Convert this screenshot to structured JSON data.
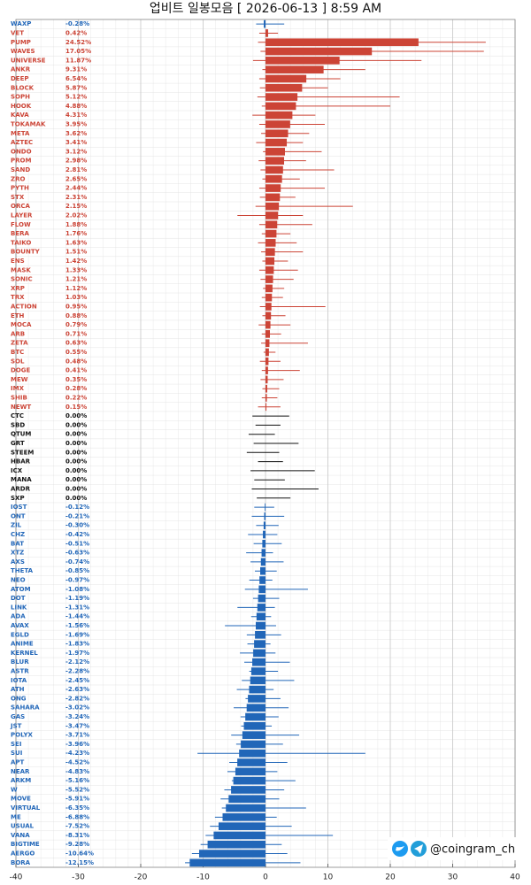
{
  "chart_data": {
    "type": "bar",
    "orientation": "horizontal",
    "title": "업비트 일봉모음 [ 2026-06-13 ]  8:59 AM",
    "watermark": "@coingram_ch",
    "xlim": [
      -40,
      40
    ],
    "xticks": [
      -40,
      -30,
      -20,
      -10,
      0,
      10,
      20,
      30,
      40
    ],
    "grid": true,
    "colors": {
      "up": "#cc4436",
      "flat": "#111111",
      "down": "#2166b8"
    },
    "categories": [
      "WAXP",
      "VET",
      "PUMP",
      "WAVES",
      "UNIVERSE",
      "ANKR",
      "DEEP",
      "BLOCK",
      "SOPH",
      "HOOK",
      "KAVA",
      "TOKAMAK",
      "META",
      "AZTEC",
      "ONDO",
      "PROM",
      "SAND",
      "ZRO",
      "PYTH",
      "STX",
      "ORCA",
      "LAYER",
      "FLOW",
      "BERA",
      "TAIKO",
      "BOUNTY",
      "ENS",
      "MASK",
      "SONIC",
      "XRP",
      "TRX",
      "ACTION",
      "ETH",
      "MOCA",
      "ARB",
      "ZETA",
      "BTC",
      "SOL",
      "DOGE",
      "MEW",
      "IMX",
      "SHIB",
      "NEWT",
      "CTC",
      "SBD",
      "QTUM",
      "GRT",
      "STEEM",
      "HBAR",
      "ICX",
      "MANA",
      "ARDR",
      "SXP",
      "IOST",
      "ONT",
      "ZIL",
      "CHZ",
      "BAT",
      "XTZ",
      "AXS",
      "THETA",
      "NEO",
      "ATOM",
      "DOT",
      "LINK",
      "ADA",
      "AVAX",
      "EGLD",
      "ANIME",
      "KERNEL",
      "BLUR",
      "ASTR",
      "IOTA",
      "ATH",
      "ONG",
      "SAHARA",
      "GAS",
      "JST",
      "POLYX",
      "SEI",
      "SUI",
      "APT",
      "NEAR",
      "ARKM",
      "W",
      "MOVE",
      "VIRTUAL",
      "ME",
      "USUAL",
      "VANA",
      "BIGTIME",
      "AERGO",
      "BORA"
    ],
    "values": [
      -0.28,
      0.42,
      24.52,
      17.05,
      11.87,
      9.31,
      6.54,
      5.87,
      5.12,
      4.88,
      4.31,
      3.95,
      3.62,
      3.41,
      3.12,
      2.98,
      2.81,
      2.65,
      2.44,
      2.31,
      2.15,
      2.02,
      1.88,
      1.76,
      1.63,
      1.51,
      1.42,
      1.33,
      1.21,
      1.12,
      1.03,
      0.95,
      0.88,
      0.79,
      0.71,
      0.63,
      0.55,
      0.48,
      0.41,
      0.35,
      0.28,
      0.22,
      0.15,
      0,
      0,
      0,
      0,
      0,
      0,
      0,
      0,
      0,
      0,
      -0.12,
      -0.21,
      -0.3,
      -0.42,
      -0.51,
      -0.63,
      -0.74,
      -0.85,
      -0.97,
      -1.08,
      -1.19,
      -1.31,
      -1.44,
      -1.56,
      -1.69,
      -1.83,
      -1.97,
      -2.12,
      -2.28,
      -2.45,
      -2.63,
      -2.82,
      -3.02,
      -3.24,
      -3.47,
      -3.71,
      -3.96,
      -4.23,
      -4.52,
      -4.83,
      -5.16,
      -5.52,
      -5.91,
      -6.35,
      -6.88,
      -7.52,
      -8.31,
      -9.28,
      -10.64,
      -12.15
    ],
    "value_labels": [
      "-0.28%",
      "0.42%",
      "24.52%",
      "17.05%",
      "11.87%",
      "9.31%",
      "6.54%",
      "5.87%",
      "5.12%",
      "4.88%",
      "4.31%",
      "3.95%",
      "3.62%",
      "3.41%",
      "3.12%",
      "2.98%",
      "2.81%",
      "2.65%",
      "2.44%",
      "2.31%",
      "2.15%",
      "2.02%",
      "1.88%",
      "1.76%",
      "1.63%",
      "1.51%",
      "1.42%",
      "1.33%",
      "1.21%",
      "1.12%",
      "1.03%",
      "0.95%",
      "0.88%",
      "0.79%",
      "0.71%",
      "0.63%",
      "0.55%",
      "0.48%",
      "0.41%",
      "0.35%",
      "0.28%",
      "0.22%",
      "0.15%",
      "0.00%",
      "0.00%",
      "0.00%",
      "0.00%",
      "0.00%",
      "0.00%",
      "0.00%",
      "0.00%",
      "0.00%",
      "0.00%",
      "-0.12%",
      "-0.21%",
      "-0.30%",
      "-0.42%",
      "-0.51%",
      "-0.63%",
      "-0.74%",
      "-0.85%",
      "-0.97%",
      "-1.08%",
      "-1.19%",
      "-1.31%",
      "-1.44%",
      "-1.56%",
      "-1.69%",
      "-1.83%",
      "-1.97%",
      "-2.12%",
      "-2.28%",
      "-2.45%",
      "-2.63%",
      "-2.82%",
      "-3.02%",
      "-3.24%",
      "-3.47%",
      "-3.71%",
      "-3.96%",
      "-4.23%",
      "-4.52%",
      "-4.83%",
      "-5.16%",
      "-5.52%",
      "-5.91%",
      "-6.35%",
      "-6.88%",
      "-7.52%",
      "-8.31%",
      "-9.28%",
      "-10.64%",
      "-12.15%"
    ],
    "lows": [
      -1.5,
      -1.0,
      -1.2,
      -0.8,
      -2.0,
      -0.5,
      -1.0,
      -0.9,
      -1.3,
      -0.6,
      -2.1,
      -1.0,
      -0.7,
      -1.5,
      -0.4,
      -1.1,
      -0.8,
      -0.5,
      -1.0,
      -0.9,
      -1.6,
      -4.5,
      -1.0,
      -0.6,
      -1.2,
      -0.7,
      -0.5,
      -1.0,
      -0.8,
      -0.4,
      -0.6,
      -0.9,
      -0.5,
      -1.1,
      -0.6,
      -0.7,
      -0.3,
      -0.9,
      -0.6,
      -0.8,
      -0.5,
      -0.6,
      -1.2,
      -2.1,
      -1.6,
      -2.7,
      -1.9,
      -3.0,
      -1.2,
      -2.4,
      -1.8,
      -2.2,
      -1.4,
      -1.8,
      -2.2,
      -1.5,
      -2.8,
      -1.9,
      -3.1,
      -2.4,
      -1.7,
      -2.6,
      -3.3,
      -2.0,
      -4.5,
      -2.3,
      -6.5,
      -3.0,
      -2.9,
      -4.1,
      -3.4,
      -2.6,
      -3.8,
      -4.6,
      -3.2,
      -5.1,
      -4.0,
      -3.9,
      -5.5,
      -4.7,
      -10.9,
      -5.8,
      -6.1,
      -5.4,
      -6.6,
      -7.2,
      -7.0,
      -8.1,
      -8.9,
      -9.6,
      -10.4,
      -11.8,
      -12.9
    ],
    "highs": [
      3.0,
      2.0,
      35.3,
      35.0,
      25.0,
      16.0,
      12.0,
      10.0,
      21.5,
      20.0,
      8.0,
      9.5,
      7.0,
      6.0,
      9.0,
      6.5,
      11.0,
      5.5,
      9.5,
      4.8,
      14.0,
      6.0,
      7.5,
      4.0,
      5.0,
      6.0,
      3.6,
      5.2,
      4.5,
      3.0,
      2.8,
      9.6,
      3.2,
      4.0,
      2.5,
      6.8,
      1.6,
      2.4,
      5.5,
      2.9,
      2.2,
      1.9,
      2.4,
      3.8,
      2.4,
      1.5,
      5.3,
      2.2,
      2.8,
      7.9,
      3.1,
      8.5,
      4.0,
      1.4,
      3.0,
      2.1,
      1.9,
      2.6,
      1.2,
      2.9,
      1.8,
      1.1,
      6.8,
      2.2,
      1.5,
      0.9,
      1.7,
      2.5,
      0.8,
      1.6,
      3.9,
      2.0,
      4.6,
      1.3,
      2.4,
      3.7,
      2.1,
      1.0,
      5.4,
      2.8,
      16.0,
      3.5,
      1.9,
      4.8,
      3.0,
      2.2,
      6.5,
      1.8,
      4.2,
      10.8,
      2.6,
      3.5,
      5.6
    ]
  }
}
